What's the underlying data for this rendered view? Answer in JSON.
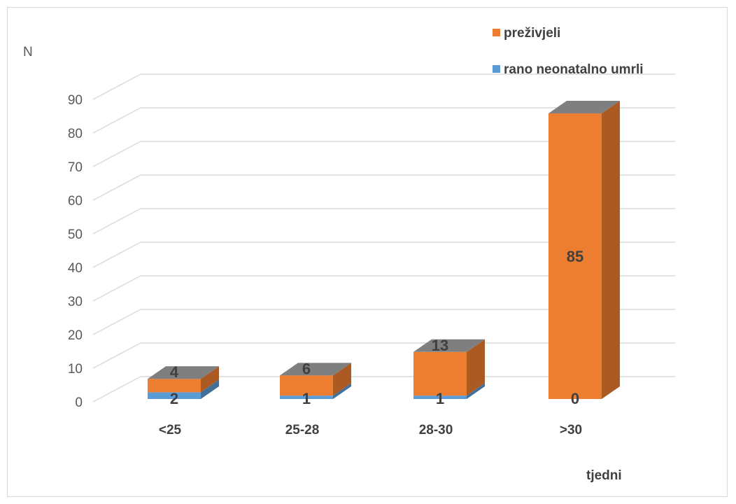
{
  "chart_data": {
    "type": "bar",
    "stacked": true,
    "three_d": true,
    "ylabel": "N",
    "xlabel": "tjedni",
    "ylim": [
      0,
      90
    ],
    "yticks": [
      0,
      10,
      20,
      30,
      40,
      50,
      60,
      70,
      80,
      90
    ],
    "categories": [
      "<25",
      "25-28",
      "28-30",
      ">30"
    ],
    "series": [
      {
        "name": "rano neonatalno umrli",
        "values": [
          2,
          1,
          1,
          0
        ],
        "color": "#5b9bd5"
      },
      {
        "name": "preživjeli",
        "values": [
          4,
          6,
          13,
          85
        ],
        "color": "#ed7d31"
      }
    ],
    "legend_position": "top-right",
    "grid": true
  }
}
